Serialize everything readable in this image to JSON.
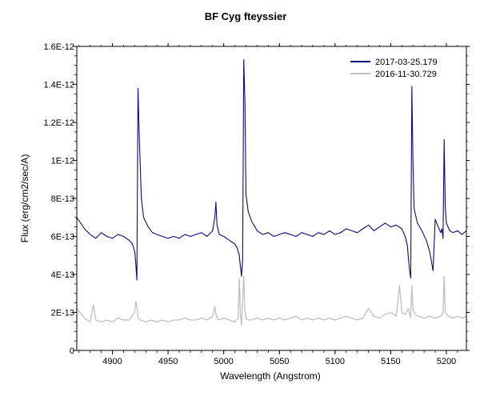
{
  "chart_data": {
    "type": "line",
    "title": "BF Cyg  fteyssier",
    "xlabel": "Wavelength (Angstrom)",
    "ylabel": "Flux (erg/cm2/sec/A)",
    "xlim": [
      4868,
      5218
    ],
    "ylim": [
      0,
      1.6e-12
    ],
    "x_ticks": [
      4900,
      4950,
      5000,
      5050,
      5100,
      5150,
      5200
    ],
    "x_tick_labels": [
      "4900",
      "4950",
      "5000",
      "5050",
      "5100",
      "5150",
      "5200"
    ],
    "y_ticks": [
      0,
      2e-13,
      4e-13,
      6e-13,
      8e-13,
      1e-12,
      1.2e-12,
      1.4e-12,
      1.6e-12
    ],
    "y_tick_labels": [
      "0",
      "2E-13",
      "4E-13",
      "6E-13",
      "8E-13",
      "1E-12",
      "1.2E-12",
      "1.4E-12",
      "1.6E-12"
    ],
    "grid": false,
    "legend_position": "top-right",
    "series": [
      {
        "name": "2017-03-25.179",
        "color": "#0a0a80",
        "x": [
          4868,
          4875,
          4880,
          4885,
          4890,
          4895,
          4900,
          4905,
          4910,
          4915,
          4918,
          4920,
          4921,
          4922,
          4923,
          4924,
          4926,
          4928,
          4932,
          4936,
          4940,
          4945,
          4950,
          4955,
          4960,
          4965,
          4970,
          4975,
          4980,
          4985,
          4990,
          4992,
          4993,
          4994,
          4996,
          5000,
          5005,
          5010,
          5012,
          5014,
          5015,
          5016,
          5017,
          5018,
          5019,
          5020,
          5022,
          5025,
          5030,
          5035,
          5040,
          5045,
          5050,
          5055,
          5060,
          5065,
          5070,
          5075,
          5080,
          5085,
          5090,
          5095,
          5100,
          5105,
          5110,
          5115,
          5120,
          5125,
          5130,
          5135,
          5140,
          5145,
          5150,
          5155,
          5160,
          5163,
          5165,
          5166,
          5167,
          5168,
          5169,
          5170,
          5171,
          5172,
          5174,
          5178,
          5182,
          5185,
          5188,
          5190,
          5192,
          5195,
          5196,
          5197,
          5198,
          5199,
          5200,
          5203,
          5206,
          5210,
          5214,
          5218
        ],
        "values": [
          7e-13,
          6.4e-13,
          6.1e-13,
          5.9e-13,
          6.2e-13,
          6e-13,
          5.9e-13,
          6.1e-13,
          6e-13,
          5.8e-13,
          5.6e-13,
          5.2e-13,
          4.6e-13,
          3.7e-13,
          1.38e-12,
          1.15e-12,
          8e-13,
          7e-13,
          6.5e-13,
          6.2e-13,
          6.1e-13,
          6e-13,
          5.9e-13,
          6e-13,
          5.9e-13,
          6.1e-13,
          6e-13,
          6.1e-13,
          6.2e-13,
          6e-13,
          6.3e-13,
          7e-13,
          7.8e-13,
          6.6e-13,
          6.1e-13,
          6e-13,
          5.8e-13,
          5.6e-13,
          5.4e-13,
          5e-13,
          4.4e-13,
          3.9e-13,
          4.8e-13,
          1.53e-12,
          1.32e-12,
          8.2e-13,
          7.3e-13,
          6.8e-13,
          6.3e-13,
          6.1e-13,
          6.2e-13,
          6e-13,
          6.1e-13,
          6.2e-13,
          6.1e-13,
          6e-13,
          6.2e-13,
          6.1e-13,
          6e-13,
          6.2e-13,
          6.1e-13,
          6.3e-13,
          6.1e-13,
          6.2e-13,
          6.4e-13,
          6.3e-13,
          6.2e-13,
          6.4e-13,
          6.6e-13,
          6.3e-13,
          6.5e-13,
          6.7e-13,
          6.5e-13,
          6.6e-13,
          6.4e-13,
          6e-13,
          5.5e-13,
          4.8e-13,
          4.2e-13,
          3.8e-13,
          1.39e-12,
          1e-12,
          7.5e-13,
          7.2e-13,
          6.7e-13,
          6.3e-13,
          5.8e-13,
          5.2e-13,
          4.2e-13,
          6.9e-13,
          6.6e-13,
          6.2e-13,
          6.4e-13,
          5.9e-13,
          1.11e-12,
          7.5e-13,
          6.7e-13,
          6.3e-13,
          6.2e-13,
          6.3e-13,
          6.1e-13,
          6.3e-13
        ]
      },
      {
        "name": "2016-11-30.729",
        "color": "#c0c0c0",
        "x": [
          4868,
          4875,
          4880,
          4883,
          4885,
          4890,
          4895,
          4900,
          4905,
          4910,
          4915,
          4920,
          4921,
          4922,
          4923,
          4925,
          4930,
          4935,
          4940,
          4945,
          4950,
          4955,
          4960,
          4965,
          4970,
          4975,
          4980,
          4985,
          4990,
          4992,
          4993,
          4995,
          5000,
          5005,
          5010,
          5013,
          5014,
          5015,
          5016,
          5017,
          5018,
          5019,
          5020,
          5022,
          5025,
          5030,
          5035,
          5040,
          5045,
          5050,
          5055,
          5060,
          5065,
          5070,
          5075,
          5080,
          5085,
          5090,
          5095,
          5100,
          5105,
          5110,
          5115,
          5120,
          5125,
          5130,
          5135,
          5140,
          5145,
          5150,
          5155,
          5158,
          5160,
          5163,
          5166,
          5168,
          5169,
          5170,
          5172,
          5175,
          5180,
          5185,
          5190,
          5195,
          5197,
          5198,
          5199,
          5202,
          5206,
          5210,
          5214,
          5218
        ],
        "values": [
          2.2e-13,
          1.7e-13,
          1.5e-13,
          2.4e-13,
          1.6e-13,
          1.5e-13,
          1.6e-13,
          1.5e-13,
          1.7e-13,
          1.6e-13,
          1.6e-13,
          2e-13,
          2.6e-13,
          2.3e-13,
          1.7e-13,
          1.6e-13,
          1.5e-13,
          1.6e-13,
          1.5e-13,
          1.6e-13,
          1.5e-13,
          1.6e-13,
          1.6e-13,
          1.7e-13,
          1.6e-13,
          1.6e-13,
          1.7e-13,
          1.6e-13,
          1.8e-13,
          2.3e-13,
          1.9e-13,
          1.6e-13,
          1.7e-13,
          1.6e-13,
          1.5e-13,
          1.7e-13,
          3.8e-13,
          1.9e-13,
          1.3e-13,
          2.6e-13,
          3.9e-13,
          2.1e-13,
          1.7e-13,
          1.6e-13,
          1.6e-13,
          1.7e-13,
          1.6e-13,
          1.7e-13,
          1.6e-13,
          1.7e-13,
          1.6e-13,
          1.7e-13,
          1.8e-13,
          1.6e-13,
          1.7e-13,
          1.6e-13,
          1.7e-13,
          1.6e-13,
          1.7e-13,
          1.6e-13,
          1.7e-13,
          1.8e-13,
          1.7e-13,
          1.6e-13,
          1.7e-13,
          2.2e-13,
          1.8e-13,
          1.7e-13,
          1.9e-13,
          2e-13,
          1.8e-13,
          3.4e-13,
          2e-13,
          1.9e-13,
          2.2e-13,
          1.7e-13,
          3.4e-13,
          2.2e-13,
          1.9e-13,
          1.8e-13,
          1.7e-13,
          1.8e-13,
          1.7e-13,
          1.8e-13,
          2e-13,
          3.9e-13,
          2e-13,
          1.8e-13,
          1.7e-13,
          1.8e-13,
          1.7e-13,
          1.8e-13
        ]
      }
    ]
  }
}
